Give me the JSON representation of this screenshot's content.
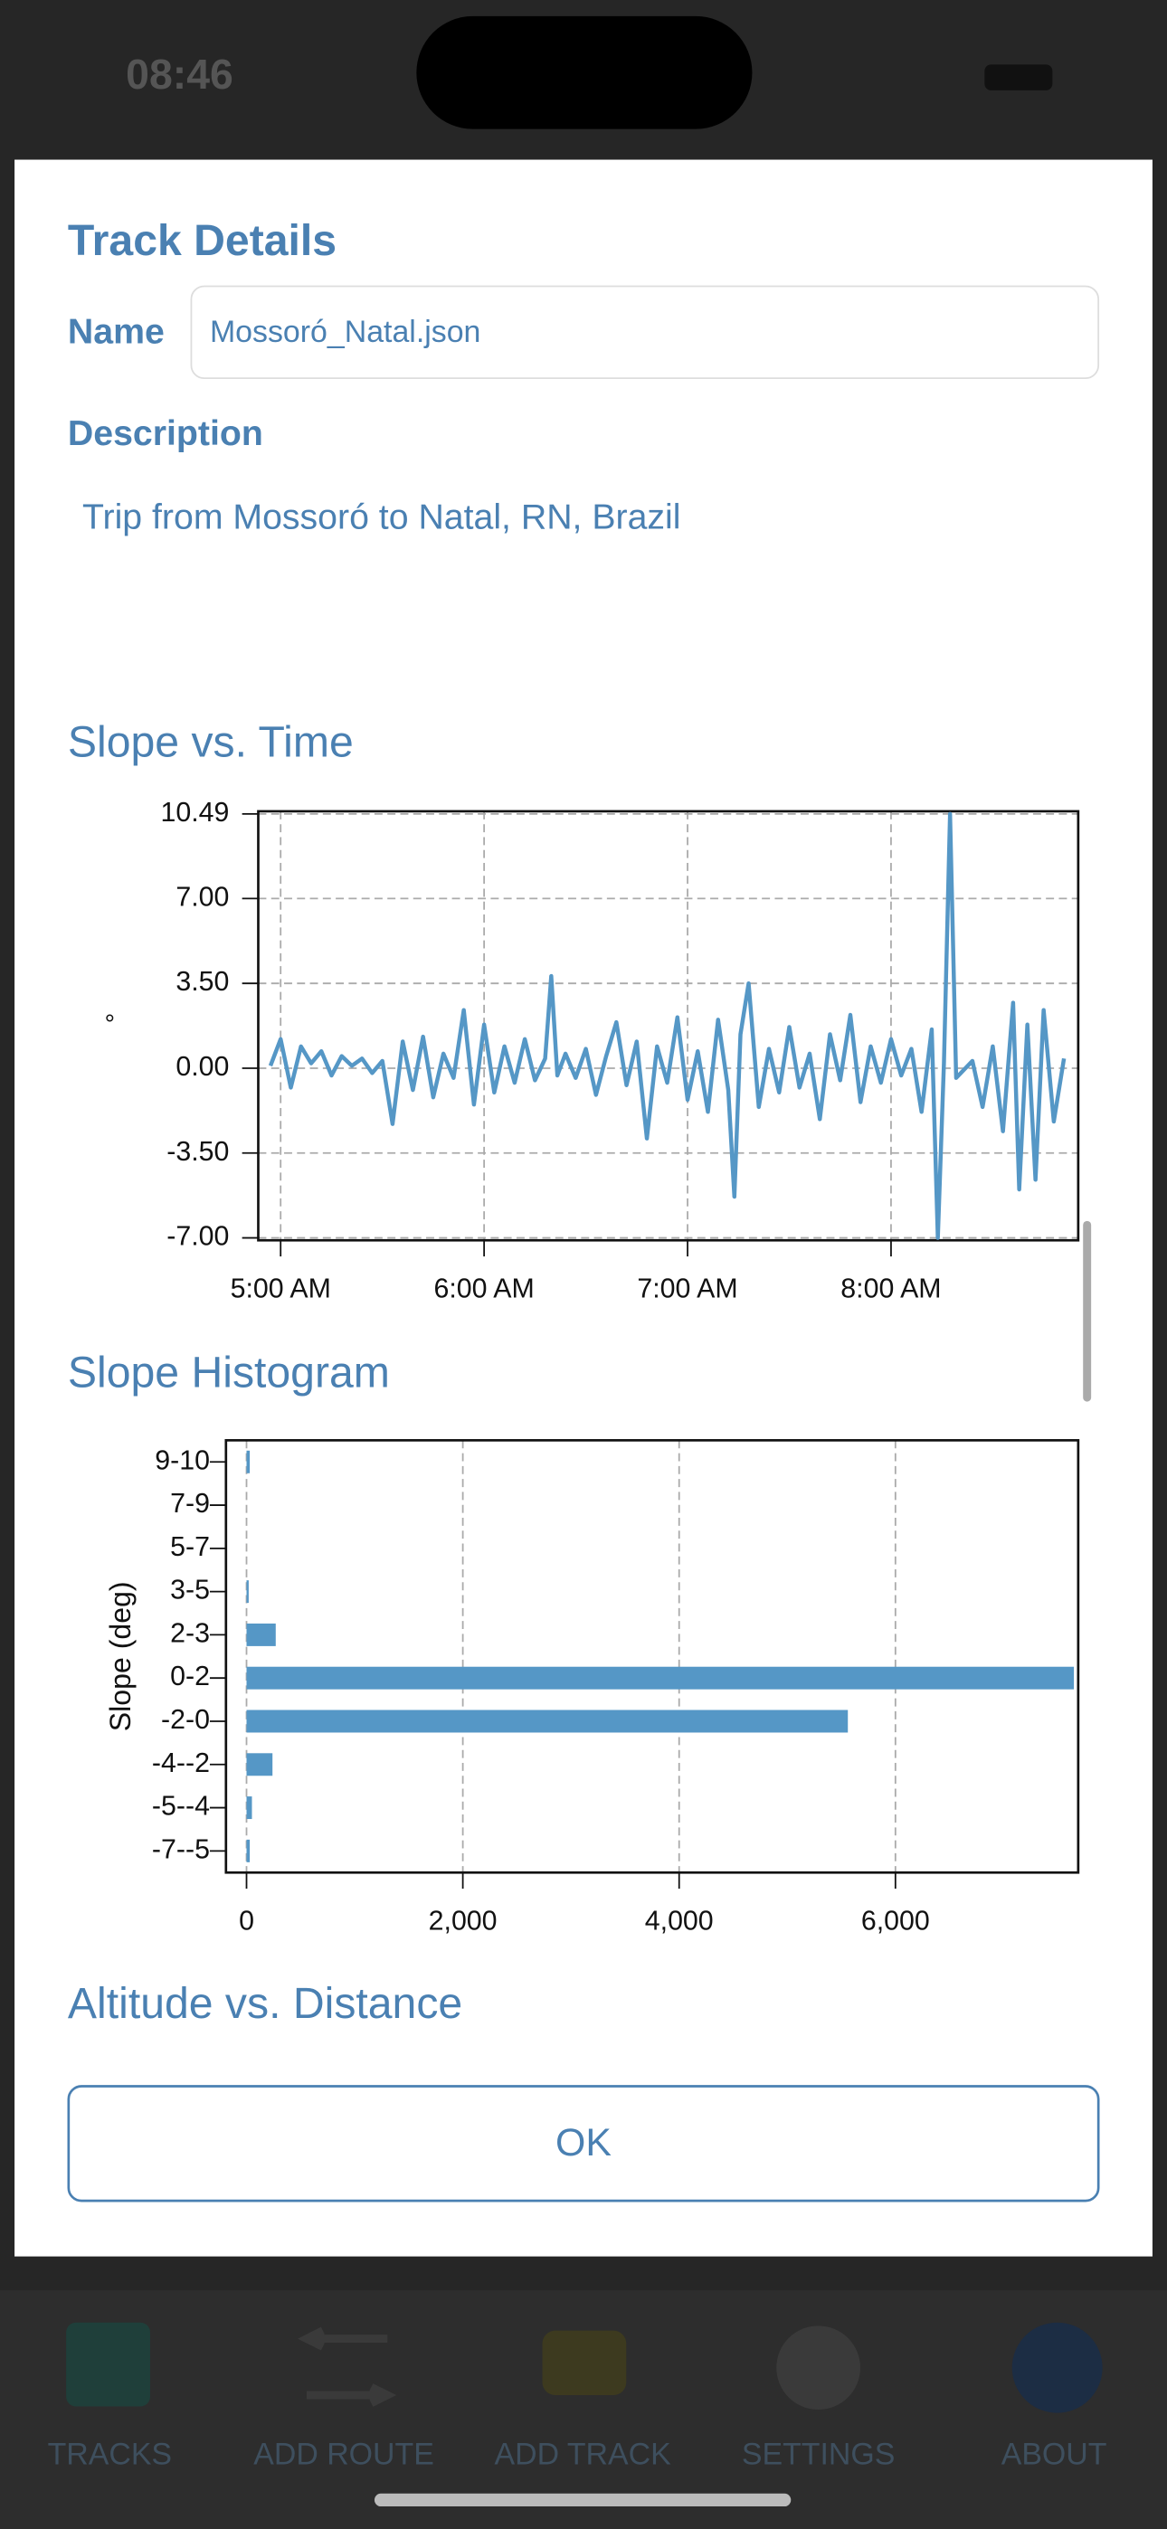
{
  "status": {
    "time": "08:46"
  },
  "dialog": {
    "title": "Track Details",
    "name_label": "Name",
    "name_value": "Mossoró_Natal.json",
    "description_label": "Description",
    "description_value": "Trip from Mossoró to Natal, RN, Brazil",
    "section_1": "Slope vs. Time",
    "section_2": "Slope Histogram",
    "section_3": "Altitude vs. Distance",
    "ok_button": "OK"
  },
  "tabs": [
    "TRACKS",
    "ADD ROUTE",
    "ADD TRACK",
    "SETTINGS",
    "ABOUT"
  ],
  "chart_data": [
    {
      "type": "line",
      "ylabel": "°",
      "color": "#5597c6",
      "grid": true,
      "x": [
        4.95,
        5.0,
        5.05,
        5.1,
        5.15,
        5.2,
        5.25,
        5.3,
        5.35,
        5.4,
        5.45,
        5.5,
        5.55,
        5.6,
        5.65,
        5.7,
        5.75,
        5.8,
        5.85,
        5.9,
        5.95,
        6.0,
        6.05,
        6.1,
        6.15,
        6.2,
        6.25,
        6.3,
        6.33,
        6.36,
        6.4,
        6.45,
        6.5,
        6.55,
        6.6,
        6.65,
        6.7,
        6.75,
        6.8,
        6.85,
        6.9,
        6.95,
        7.0,
        7.05,
        7.1,
        7.15,
        7.2,
        7.23,
        7.26,
        7.3,
        7.35,
        7.4,
        7.45,
        7.5,
        7.55,
        7.6,
        7.65,
        7.7,
        7.75,
        7.8,
        7.85,
        7.9,
        7.95,
        8.0,
        8.05,
        8.1,
        8.15,
        8.2,
        8.23,
        8.26,
        8.29,
        8.32,
        8.4,
        8.45,
        8.5,
        8.55,
        8.6,
        8.63,
        8.67,
        8.71,
        8.75,
        8.8,
        8.85
      ],
      "values": [
        0.1,
        1.2,
        -0.8,
        0.9,
        0.2,
        0.7,
        -0.3,
        0.5,
        0.1,
        0.4,
        -0.2,
        0.3,
        -2.3,
        1.1,
        -0.9,
        1.3,
        -1.2,
        0.6,
        -0.4,
        2.4,
        -1.5,
        1.8,
        -1.0,
        0.9,
        -0.6,
        1.2,
        -0.5,
        0.4,
        3.8,
        -0.3,
        0.6,
        -0.4,
        0.8,
        -1.1,
        0.5,
        1.9,
        -0.7,
        1.1,
        -2.9,
        0.9,
        -0.6,
        2.1,
        -1.3,
        0.7,
        -1.8,
        2.0,
        -0.9,
        -5.3,
        1.4,
        3.5,
        -1.6,
        0.8,
        -1.0,
        1.7,
        -0.8,
        0.6,
        -2.1,
        1.4,
        -0.5,
        2.2,
        -1.4,
        0.9,
        -0.6,
        1.2,
        -0.3,
        0.8,
        -1.8,
        1.6,
        -7.0,
        0.2,
        10.49,
        -0.4,
        0.3,
        -1.6,
        0.9,
        -2.6,
        2.7,
        -5.0,
        1.8,
        -4.6,
        2.4,
        -2.2,
        0.4
      ],
      "xlim": [
        4.89,
        8.92
      ],
      "xticks": [
        {
          "value": 5,
          "label": "5:00 AM"
        },
        {
          "value": 6,
          "label": "6:00 AM"
        },
        {
          "value": 7,
          "label": "7:00 AM"
        },
        {
          "value": 8,
          "label": "8:00 AM"
        }
      ],
      "ylim": [
        -7.1,
        10.6
      ],
      "yticks": [
        {
          "value": 10.49,
          "label": "10.49"
        },
        {
          "value": 7,
          "label": "7.00"
        },
        {
          "value": 3.5,
          "label": "3.50"
        },
        {
          "value": 0,
          "label": "0.00"
        },
        {
          "value": -3.5,
          "label": "-3.50"
        },
        {
          "value": -7,
          "label": "-7.00"
        }
      ]
    },
    {
      "type": "hbar",
      "ylabel": "Slope (deg)",
      "color": "#5597c6",
      "grid": true,
      "categories": [
        "9-10",
        "7-9",
        "5-7",
        "3-5",
        "2-3",
        "0-2",
        "-2-0",
        "-4--2",
        "-5--4",
        "-7--5"
      ],
      "values": [
        30,
        0,
        0,
        20,
        270,
        7650,
        5560,
        240,
        50,
        30
      ],
      "xlim": [
        -190,
        7690
      ],
      "xticks": [
        0,
        {
          "value": 2000,
          "label": "2,000"
        },
        {
          "value": 4000,
          "label": "4,000"
        },
        {
          "value": 6000,
          "label": "6,000"
        }
      ]
    }
  ]
}
